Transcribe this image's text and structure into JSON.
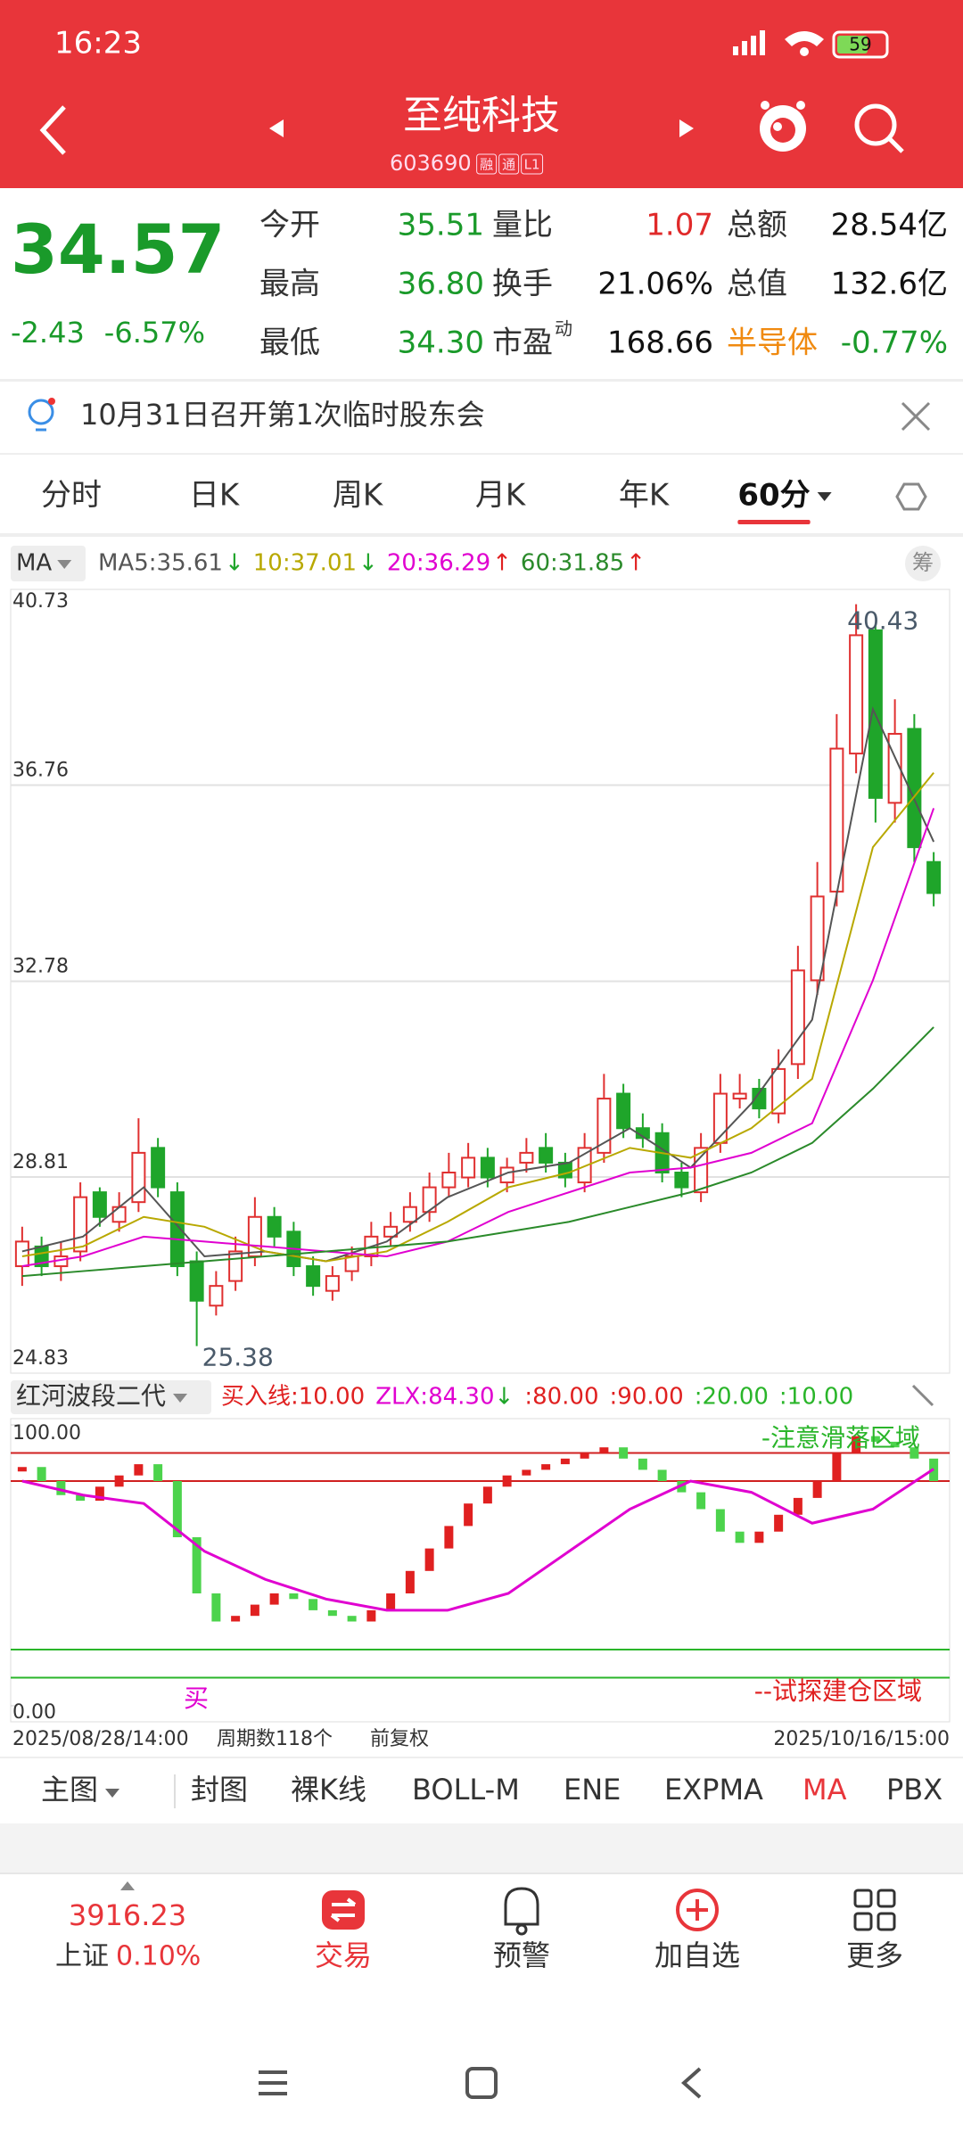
{
  "status_bar": {
    "time": "16:23",
    "battery": "59"
  },
  "header": {
    "title": "至纯科技",
    "code": "603690",
    "badges": [
      "融",
      "通",
      "L1"
    ]
  },
  "quote": {
    "price": "34.57",
    "change": "-2.43",
    "change_pct": "-6.57%",
    "fields": [
      {
        "label": "今开",
        "value": "35.51",
        "color": "#1a9a2a"
      },
      {
        "label": "量比",
        "value": "1.07",
        "color": "#e02a2a"
      },
      {
        "label": "总额",
        "value": "28.54亿",
        "color": "#111111"
      },
      {
        "label": "最高",
        "value": "36.80",
        "color": "#1a9a2a"
      },
      {
        "label": "换手",
        "value": "21.06%",
        "color": "#111111"
      },
      {
        "label": "总值",
        "value": "132.6亿",
        "color": "#111111"
      },
      {
        "label": "最低",
        "value": "34.30",
        "color": "#1a9a2a"
      },
      {
        "label": "市盈",
        "sup": "动",
        "value": "168.66",
        "color": "#111111"
      },
      {
        "label": "半导体",
        "label_color": "#f08a10",
        "value": "-0.77%",
        "color": "#1a9a2a"
      }
    ]
  },
  "notice": "10月31日召开第1次临时股东会",
  "tabs": {
    "items": [
      "分时",
      "日K",
      "周K",
      "月K",
      "年K",
      "60分"
    ],
    "active": 5
  },
  "chart_controls": {
    "main": "MA",
    "right": "筹",
    "indicator": "红河波段二代"
  },
  "chart_data": [
    {
      "type": "candlestick",
      "ylim": [
        24.83,
        40.73
      ],
      "yticks": [
        24.83,
        28.81,
        32.78,
        36.76,
        40.73
      ],
      "grid": true,
      "up_color": "#e03030",
      "down_color": "#1fa52a",
      "open": [
        27.0,
        27.4,
        27.0,
        27.3,
        28.5,
        27.9,
        28.3,
        29.4,
        28.5,
        27.1,
        26.2,
        26.7,
        27.2,
        28.0,
        27.7,
        27.0,
        26.5,
        26.9,
        27.2,
        27.6,
        27.9,
        28.1,
        28.6,
        28.8,
        29.2,
        28.7,
        29.1,
        29.4,
        29.1,
        28.7,
        29.3,
        30.5,
        29.8,
        29.7,
        28.9,
        28.5,
        29.5,
        30.4,
        30.6,
        30.1,
        31.1,
        32.8,
        34.6,
        37.4,
        39.9,
        36.4,
        37.9,
        35.2
      ],
      "high": [
        27.8,
        27.6,
        27.5,
        28.7,
        28.6,
        28.5,
        30.0,
        29.6,
        28.7,
        27.3,
        26.9,
        27.6,
        28.4,
        28.2,
        27.9,
        27.2,
        27.0,
        27.4,
        27.9,
        28.1,
        28.5,
        28.9,
        29.3,
        29.5,
        29.4,
        29.2,
        29.6,
        29.7,
        29.3,
        29.7,
        30.9,
        30.7,
        30.1,
        29.9,
        29.1,
        29.7,
        30.9,
        30.9,
        30.8,
        31.4,
        33.5,
        35.2,
        38.2,
        40.43,
        40.0,
        38.5,
        38.2,
        35.4
      ],
      "low": [
        26.6,
        26.8,
        26.7,
        27.1,
        27.8,
        27.7,
        28.1,
        28.4,
        26.8,
        25.38,
        26.0,
        26.5,
        27.0,
        27.4,
        26.8,
        26.4,
        26.3,
        26.7,
        27.0,
        27.4,
        27.7,
        27.9,
        28.4,
        28.6,
        28.6,
        28.5,
        28.9,
        28.9,
        28.6,
        28.5,
        29.1,
        29.6,
        29.4,
        28.7,
        28.4,
        28.3,
        29.3,
        30.2,
        30.0,
        29.9,
        30.8,
        32.5,
        34.3,
        37.0,
        36.0,
        36.0,
        35.2,
        34.3
      ],
      "close": [
        27.5,
        27.0,
        27.2,
        28.4,
        28.0,
        28.2,
        29.3,
        28.6,
        27.0,
        26.3,
        26.6,
        27.3,
        28.0,
        27.6,
        27.0,
        26.6,
        26.8,
        27.2,
        27.6,
        27.8,
        28.2,
        28.6,
        28.9,
        29.2,
        28.8,
        29.0,
        29.3,
        29.1,
        28.8,
        29.4,
        30.4,
        29.8,
        29.6,
        28.9,
        28.6,
        29.4,
        30.5,
        30.5,
        30.2,
        31.0,
        33.0,
        34.5,
        37.5,
        39.8,
        36.5,
        37.8,
        35.5,
        34.57
      ],
      "series": [
        {
          "label": "MA5:35.61",
          "trend": "↓",
          "color": "#555555",
          "values": [
            27.3,
            27.6,
            28.6,
            27.2,
            27.3,
            27.1,
            27.5,
            28.4,
            28.9,
            29.1,
            29.8,
            29.0,
            30.3,
            32.0,
            38.3,
            35.61
          ]
        },
        {
          "label": "10:37.01",
          "trend": "↓",
          "color": "#b8a800",
          "values": [
            27.2,
            27.4,
            28.0,
            27.8,
            27.3,
            27.1,
            27.3,
            27.9,
            28.6,
            28.9,
            29.4,
            29.2,
            29.8,
            30.8,
            35.5,
            37.01
          ]
        },
        {
          "label": "20:36.29",
          "trend": "↑",
          "color": "#e000d0",
          "values": [
            27.0,
            27.2,
            27.6,
            27.5,
            27.4,
            27.3,
            27.2,
            27.5,
            28.1,
            28.5,
            28.9,
            29.0,
            29.3,
            29.9,
            32.8,
            36.29
          ]
        },
        {
          "label": "60:31.85",
          "trend": "↑",
          "color": "#2a8a2a",
          "values": [
            26.8,
            26.9,
            27.0,
            27.1,
            27.2,
            27.3,
            27.4,
            27.5,
            27.7,
            27.9,
            28.2,
            28.5,
            28.9,
            29.5,
            30.6,
            31.85
          ]
        }
      ]
    },
    {
      "type": "bar",
      "ylim": [
        0,
        100
      ],
      "yticks": [
        {
          "value": 0,
          "label": "0.00"
        },
        {
          "value": 100,
          "label": "100.00"
        }
      ],
      "params": [
        {
          "text": "买入线:10.00",
          "color": "#e02020"
        },
        {
          "text": "ZLX:84.30",
          "color": "#e000d0",
          "arrow": "↓"
        },
        {
          "text": ":80.00",
          "color": "#e02020"
        },
        {
          "text": ":90.00",
          "color": "#e02020"
        },
        {
          "text": ":20.00",
          "color": "#2ab52a"
        },
        {
          "text": ":10.00",
          "color": "#2ab52a"
        }
      ],
      "levels": [
        {
          "value": 90,
          "color": "#d02020"
        },
        {
          "value": 80,
          "color": "#d02020"
        },
        {
          "value": 20,
          "color": "#2ab52a"
        },
        {
          "value": 10,
          "color": "#2ab52a"
        }
      ],
      "values": [
        85,
        80,
        75,
        73,
        78,
        82,
        86,
        80,
        60,
        40,
        30,
        32,
        36,
        40,
        38,
        34,
        32,
        30,
        34,
        40,
        48,
        56,
        64,
        72,
        78,
        82,
        84,
        86,
        88,
        90,
        92,
        88,
        84,
        80,
        76,
        70,
        62,
        58,
        62,
        68,
        74,
        80,
        90,
        96,
        94,
        92,
        88,
        80
      ],
      "series": [
        {
          "color": "#e000d0",
          "values": [
            80,
            75,
            72,
            55,
            45,
            38,
            34,
            34,
            40,
            55,
            70,
            80,
            76,
            65,
            70,
            84.3
          ]
        }
      ],
      "annotations": {
        "top": "-注意滑落区域",
        "bottom": "--试探建仓区域",
        "buy": "买"
      }
    }
  ],
  "range_info": {
    "start": "2025/08/28/14:00",
    "count": "周期数118个",
    "adjust": "前复权",
    "end": "2025/10/16/15:00"
  },
  "toolbar": {
    "items": [
      "主图",
      "封图",
      "裸K线",
      "BOLL-M",
      "ENE",
      "EXPMA",
      "MA",
      "PBX"
    ],
    "active": 6
  },
  "bottom_nav": {
    "index_value": "3916.23",
    "index_name": "上证",
    "index_change": "0.10%",
    "items": [
      "交易",
      "预警",
      "加自选",
      "更多"
    ]
  }
}
